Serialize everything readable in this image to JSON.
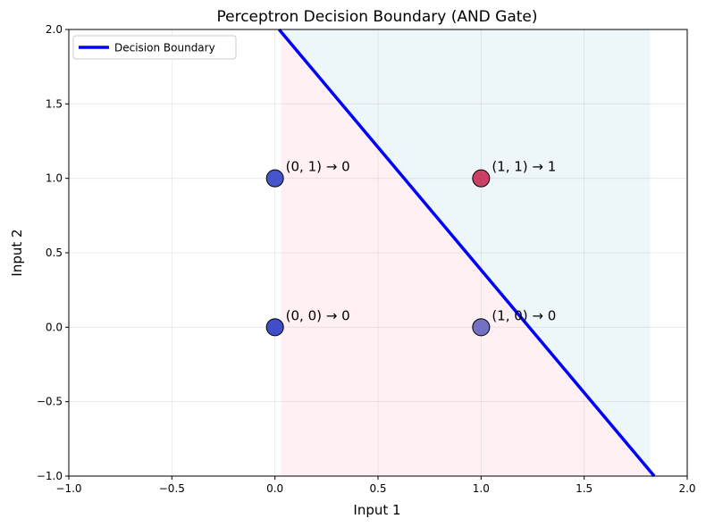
{
  "chart_data": {
    "type": "scatter",
    "title": "Perceptron Decision Boundary (AND Gate)",
    "xlabel": "Input 1",
    "ylabel": "Input 2",
    "xlim": [
      -1.0,
      2.0
    ],
    "ylim": [
      -1.0,
      2.0
    ],
    "xticks": [
      -1.0,
      -0.5,
      0.0,
      0.5,
      1.0,
      1.5,
      2.0
    ],
    "yticks": [
      -1.0,
      -0.5,
      0.0,
      0.5,
      1.0,
      1.5,
      2.0
    ],
    "xtick_labels": [
      "−1.0",
      "−0.5",
      "0.0",
      "0.5",
      "1.0",
      "1.5",
      "2.0"
    ],
    "ytick_labels": [
      "−1.0",
      "−0.5",
      "0.0",
      "0.5",
      "1.0",
      "1.5",
      "2.0"
    ],
    "grid": true,
    "legend_position": "top-left",
    "decision_boundary": {
      "name": "Decision Boundary",
      "color": "#0000ff",
      "x": [
        0.02,
        1.84
      ],
      "y": [
        2.0,
        -1.0
      ]
    },
    "regions": {
      "x_span": [
        0.03,
        1.82
      ],
      "class0_color": "#fff0f3",
      "class1_color": "#edf7f9"
    },
    "points": [
      {
        "x": 0,
        "y": 0,
        "label": "(0, 0) → 0",
        "class": 0,
        "color": "#1f2fbf"
      },
      {
        "x": 0,
        "y": 1,
        "label": "(0, 1) → 0",
        "class": 0,
        "color": "#2438c4"
      },
      {
        "x": 1,
        "y": 0,
        "label": "(1, 0) → 0",
        "class": 0,
        "color": "#5a5ab8"
      },
      {
        "x": 1,
        "y": 1,
        "label": "(1, 1) → 1",
        "class": 1,
        "color": "#c4204a"
      }
    ]
  }
}
